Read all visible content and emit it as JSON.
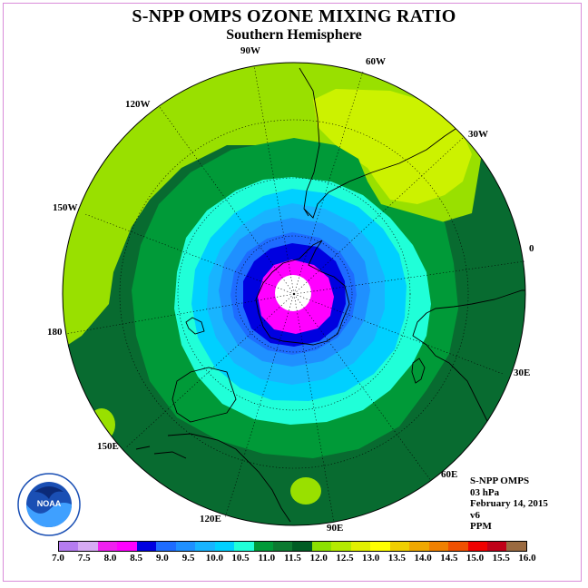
{
  "title": "S-NPP OMPS OZONE MIXING RATIO",
  "subtitle": "Southern Hemisphere",
  "longitude_labels": {
    "w90": "90W",
    "w60": "60W",
    "w120": "120W",
    "w30": "30W",
    "w150": "150W",
    "zero": "0",
    "deg180": "180",
    "e30": "30E",
    "e150": "150E",
    "e60": "60E",
    "e120": "120E",
    "e90": "90E"
  },
  "info": {
    "instrument": "S-NPP OMPS",
    "level": "03 hPa",
    "date": "February 14, 2015",
    "version": "v6",
    "units": "PPM"
  },
  "logo": {
    "text": "NOAA",
    "ring_text": "NATIONAL OCEANIC AND ATMOSPHERIC ADMINISTRATION · U.S. DEPARTMENT OF COMMERCE"
  },
  "colorbar": {
    "colors": [
      "#b57cf0",
      "#d6aaf4",
      "#f020f0",
      "#ff00ff",
      "#0000e0",
      "#1e6cff",
      "#1f90ff",
      "#18b4ff",
      "#00d0ff",
      "#20ffd8",
      "#009a38",
      "#0c7a30",
      "#005c24",
      "#8ce000",
      "#b4ea00",
      "#e2f000",
      "#ffff00",
      "#f0cf00",
      "#f0a800",
      "#f08000",
      "#f05000",
      "#f00000",
      "#c00018",
      "#9a6a40"
    ],
    "ticks": [
      "7.0",
      "7.5",
      "8.0",
      "8.5",
      "9.0",
      "9.5",
      "10.0",
      "10.5",
      "11.0",
      "11.5",
      "12.0",
      "12.5",
      "13.0",
      "13.5",
      "14.0",
      "14.5",
      "15.0",
      "15.5",
      "16.0"
    ]
  },
  "map_colors": {
    "outer_dark_green": "#086b30",
    "mid_green": "#009a38",
    "light_green": "#99e000",
    "yellow_green": "#ccf200",
    "cyan": "#20ffd8",
    "light_blue": "#00d0ff",
    "sky_blue": "#18b4ff",
    "blue": "#1f90ff",
    "royal_blue": "#1e6cff",
    "dark_blue": "#0000e0",
    "magenta": "#ff00ff",
    "center": "#ffffff"
  }
}
